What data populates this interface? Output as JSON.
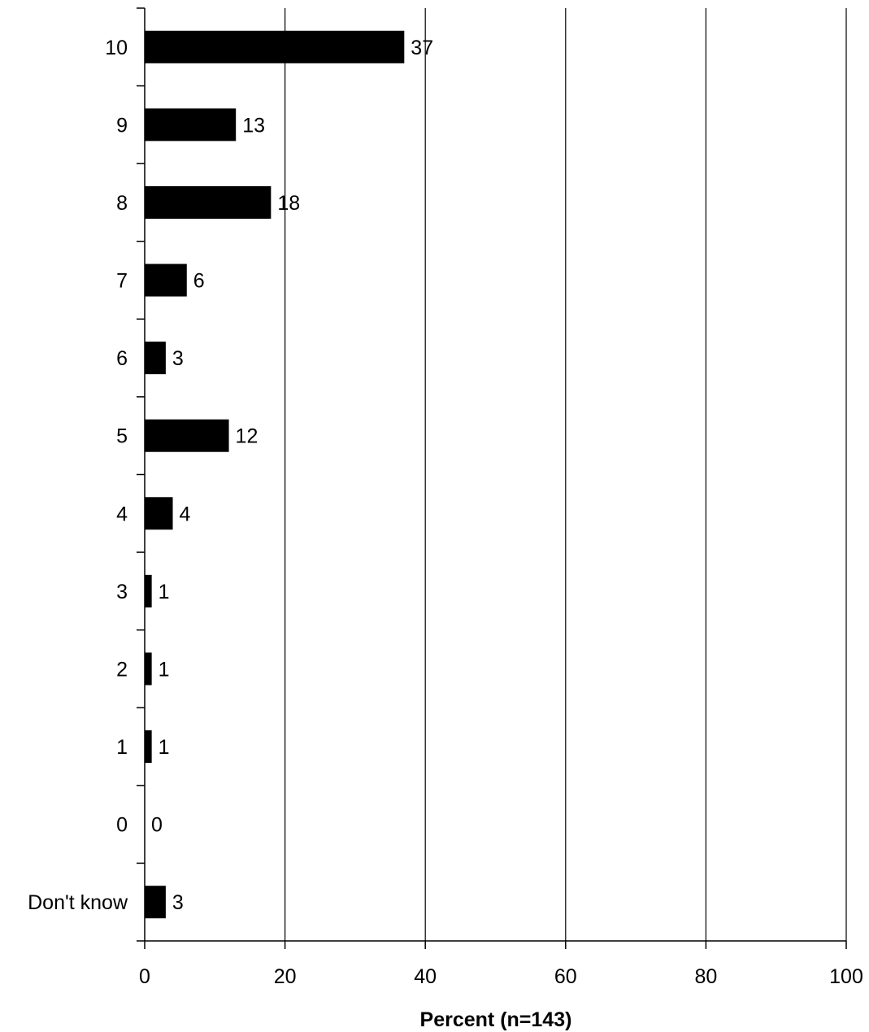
{
  "chart_data": {
    "type": "bar",
    "orientation": "horizontal",
    "categories": [
      "10",
      "9",
      "8",
      "7",
      "6",
      "5",
      "4",
      "3",
      "2",
      "1",
      "0",
      "Don't know"
    ],
    "values": [
      37,
      13,
      18,
      6,
      3,
      12,
      4,
      1,
      1,
      1,
      0,
      3
    ],
    "value_labels": [
      "37",
      "13",
      "18",
      "6",
      "3",
      "12",
      "4",
      "1",
      "1",
      "1",
      "0",
      "3"
    ],
    "title": "",
    "xlabel": "Percent (n=143)",
    "ylabel": "",
    "xlim": [
      0,
      100
    ],
    "xticks": [
      0,
      20,
      40,
      60,
      80,
      100
    ],
    "xtick_labels": [
      "0",
      "20",
      "40",
      "60",
      "80",
      "100"
    ],
    "grid": "vertical",
    "legend": "none",
    "bar_color": "#000000"
  }
}
